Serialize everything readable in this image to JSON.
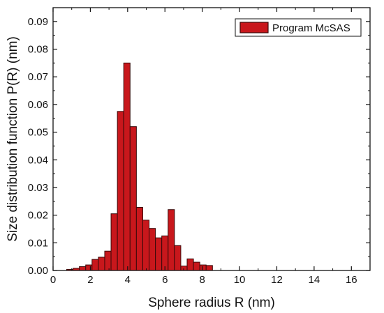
{
  "chart_data": {
    "type": "bar",
    "xlabel": "Sphere radius R (nm)",
    "ylabel": "Size distribution function P(R) (nm)",
    "xlim": [
      0,
      17
    ],
    "ylim": [
      0,
      0.095
    ],
    "x_ticks": [
      0,
      2,
      4,
      6,
      8,
      10,
      12,
      14,
      16
    ],
    "y_ticks": [
      0.0,
      0.01,
      0.02,
      0.03,
      0.04,
      0.05,
      0.06,
      0.07,
      0.08,
      0.09
    ],
    "x_tick_labels": [
      "0",
      "2",
      "4",
      "6",
      "8",
      "10",
      "12",
      "14",
      "16"
    ],
    "y_tick_labels": [
      "0.00",
      "0.01",
      "0.02",
      "0.03",
      "0.04",
      "0.05",
      "0.06",
      "0.07",
      "0.08",
      "0.09"
    ],
    "bar_width": 0.34,
    "grid": false,
    "legend_position": "top-right",
    "series": [
      {
        "name": "Program McSAS",
        "color": "#c8171c",
        "edge_color": "#3a0a0a",
        "x": [
          0.9,
          1.24,
          1.58,
          1.92,
          2.26,
          2.6,
          2.94,
          3.28,
          3.62,
          3.96,
          4.3,
          4.64,
          4.98,
          5.32,
          5.66,
          6.0,
          6.34,
          6.68,
          7.02,
          7.36,
          7.7,
          8.04,
          8.38,
          8.72,
          9.06,
          9.4
        ],
        "values": [
          0.0004,
          0.0008,
          0.0014,
          0.002,
          0.004,
          0.0048,
          0.007,
          0.0205,
          0.0575,
          0.075,
          0.052,
          0.0228,
          0.0182,
          0.0152,
          0.0118,
          0.0125,
          0.022,
          0.009,
          0.0016,
          0.0042,
          0.003,
          0.002,
          0.0018,
          0.0,
          0.0,
          0.0
        ]
      }
    ]
  }
}
